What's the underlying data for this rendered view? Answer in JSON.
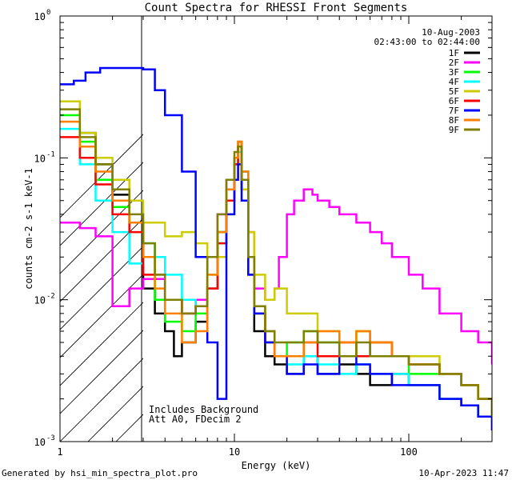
{
  "chart_data": {
    "type": "line",
    "title": "Count Spectra for RHESSI Front Segments",
    "xlabel": "Energy (keV)",
    "ylabel": "counts cm-2 s-1 keV-1",
    "xscale": "log",
    "yscale": "log",
    "xlim": [
      1,
      300
    ],
    "ylim": [
      0.001,
      1
    ],
    "x_ticks": [
      {
        "value": 1,
        "label": "1"
      },
      {
        "value": 10,
        "label": "10"
      },
      {
        "value": 100,
        "label": "100"
      }
    ],
    "y_ticks": [
      {
        "value": 1,
        "label": "10",
        "exp": "0"
      },
      {
        "value": 0.1,
        "label": "10",
        "exp": "-1"
      },
      {
        "value": 0.01,
        "label": "10",
        "exp": "-2"
      },
      {
        "value": 0.001,
        "label": "10",
        "exp": "-3"
      }
    ],
    "excluded_region": {
      "from": 1,
      "to": 3
    },
    "info": {
      "date": "10-Aug-2003",
      "time_range": "02:43:00 to 02:44:00",
      "background_note": "Includes Background",
      "attenuator_note": "Att A0, FDecim 2"
    },
    "footer_left": "Generated by hsi_min_spectra_plot.pro",
    "footer_right": "10-Apr-2023 11:47",
    "series": [
      {
        "name": "1F",
        "color": "#000000",
        "x": [
          1.3,
          1.6,
          2.0,
          2.5,
          3.0,
          3.5,
          4.0,
          4.5,
          5.0,
          6.0,
          7.0,
          8.0,
          9.0,
          10.0,
          10.5,
          11.0,
          12.0,
          13.0,
          15.0,
          17.0,
          20.0,
          25.0,
          30.0,
          40.0,
          50.0,
          60.0,
          80.0,
          100.0,
          150.0,
          200.0,
          250.0,
          300.0
        ],
        "y": [
          0.15,
          0.09,
          0.055,
          0.035,
          0.012,
          0.008,
          0.006,
          0.004,
          0.005,
          0.007,
          0.012,
          0.03,
          0.05,
          0.09,
          0.12,
          0.06,
          0.015,
          0.006,
          0.004,
          0.0035,
          0.003,
          0.004,
          0.003,
          0.0035,
          0.003,
          0.0025,
          0.003,
          0.0025,
          0.002,
          0.0018,
          0.0015,
          0.0012
        ]
      },
      {
        "name": "2F",
        "color": "#ff00ff",
        "x": [
          1.0,
          1.3,
          1.6,
          2.0,
          2.5,
          3.0,
          4.0,
          5.0,
          6.0,
          7.0,
          8.0,
          9.0,
          10.0,
          10.5,
          11.0,
          12.0,
          13.0,
          15.0,
          17.0,
          18.0,
          20.0,
          22.0,
          25.0,
          28.0,
          30.0,
          35.0,
          40.0,
          50.0,
          60.0,
          70.0,
          80.0,
          100.0,
          120.0,
          150.0,
          200.0,
          250.0,
          300.0
        ],
        "y": [
          0.035,
          0.032,
          0.028,
          0.009,
          0.012,
          0.014,
          0.01,
          0.008,
          0.01,
          0.02,
          0.04,
          0.07,
          0.1,
          0.12,
          0.08,
          0.03,
          0.012,
          0.01,
          0.012,
          0.02,
          0.04,
          0.05,
          0.06,
          0.055,
          0.05,
          0.045,
          0.04,
          0.035,
          0.03,
          0.025,
          0.02,
          0.015,
          0.012,
          0.008,
          0.006,
          0.005,
          0.0035
        ]
      },
      {
        "name": "3F",
        "color": "#00ff00",
        "x": [
          1.0,
          1.3,
          1.6,
          2.0,
          2.5,
          3.0,
          3.5,
          4.0,
          5.0,
          6.0,
          7.0,
          8.0,
          9.0,
          10.0,
          10.5,
          11.0,
          12.0,
          13.0,
          15.0,
          17.0,
          20.0,
          25.0,
          30.0,
          40.0,
          50.0,
          60.0,
          80.0,
          100.0,
          150.0,
          200.0,
          250.0,
          300.0
        ],
        "y": [
          0.2,
          0.13,
          0.07,
          0.045,
          0.035,
          0.025,
          0.01,
          0.007,
          0.006,
          0.008,
          0.015,
          0.03,
          0.06,
          0.1,
          0.13,
          0.08,
          0.02,
          0.008,
          0.005,
          0.004,
          0.005,
          0.006,
          0.005,
          0.004,
          0.006,
          0.005,
          0.004,
          0.003,
          0.003,
          0.0025,
          0.002,
          0.0015
        ]
      },
      {
        "name": "4F",
        "color": "#00ffff",
        "x": [
          1.0,
          1.3,
          1.6,
          2.0,
          2.5,
          3.0,
          3.5,
          4.0,
          5.0,
          6.0,
          7.0,
          8.0,
          9.0,
          10.0,
          10.5,
          11.0,
          12.0,
          13.0,
          15.0,
          17.0,
          20.0,
          25.0,
          30.0,
          40.0,
          50.0,
          60.0,
          80.0,
          100.0,
          150.0,
          200.0,
          250.0,
          300.0
        ],
        "y": [
          0.16,
          0.09,
          0.05,
          0.03,
          0.018,
          0.025,
          0.02,
          0.015,
          0.01,
          0.009,
          0.012,
          0.025,
          0.05,
          0.09,
          0.11,
          0.07,
          0.02,
          0.009,
          0.006,
          0.004,
          0.0035,
          0.004,
          0.0035,
          0.003,
          0.0035,
          0.003,
          0.003,
          0.0025,
          0.002,
          0.0018,
          0.0015,
          0.0012
        ]
      },
      {
        "name": "5F",
        "color": "#cccc00",
        "x": [
          1.0,
          1.3,
          1.6,
          2.0,
          2.5,
          3.0,
          4.0,
          5.0,
          6.0,
          7.0,
          8.0,
          9.0,
          10.0,
          10.5,
          11.0,
          12.0,
          13.0,
          15.0,
          17.0,
          20.0,
          25.0,
          30.0,
          40.0,
          50.0,
          60.0,
          80.0,
          100.0,
          150.0,
          200.0,
          250.0,
          300.0
        ],
        "y": [
          0.25,
          0.15,
          0.1,
          0.07,
          0.05,
          0.035,
          0.028,
          0.03,
          0.025,
          0.02,
          0.02,
          0.04,
          0.07,
          0.09,
          0.06,
          0.03,
          0.015,
          0.01,
          0.012,
          0.008,
          0.008,
          0.006,
          0.005,
          0.006,
          0.005,
          0.004,
          0.004,
          0.003,
          0.0025,
          0.002,
          0.0015
        ]
      },
      {
        "name": "6F",
        "color": "#ff0000",
        "x": [
          1.0,
          1.3,
          1.6,
          2.0,
          2.5,
          3.0,
          4.0,
          5.0,
          6.0,
          7.0,
          8.0,
          9.0,
          10.0,
          10.5,
          11.0,
          12.0,
          13.0,
          15.0,
          17.0,
          20.0,
          25.0,
          30.0,
          40.0,
          50.0,
          60.0,
          80.0,
          100.0,
          150.0,
          200.0,
          250.0,
          300.0
        ],
        "y": [
          0.14,
          0.1,
          0.065,
          0.04,
          0.03,
          0.015,
          0.01,
          0.008,
          0.009,
          0.012,
          0.025,
          0.05,
          0.09,
          0.13,
          0.07,
          0.02,
          0.008,
          0.005,
          0.004,
          0.004,
          0.005,
          0.004,
          0.005,
          0.004,
          0.005,
          0.004,
          0.0035,
          0.003,
          0.0025,
          0.002,
          0.0015
        ]
      },
      {
        "name": "7F",
        "color": "#0000ff",
        "x": [
          1.0,
          1.2,
          1.4,
          1.7,
          2.0,
          2.5,
          3.0,
          3.5,
          4.0,
          5.0,
          6.0,
          7.0,
          8.0,
          9.0,
          10.0,
          10.5,
          11.0,
          12.0,
          13.0,
          15.0,
          17.0,
          20.0,
          25.0,
          30.0,
          40.0,
          50.0,
          60.0,
          80.0,
          100.0,
          150.0,
          200.0,
          250.0,
          300.0
        ],
        "y": [
          0.33,
          0.35,
          0.4,
          0.43,
          0.43,
          0.43,
          0.42,
          0.3,
          0.2,
          0.08,
          0.02,
          0.005,
          0.002,
          0.04,
          0.07,
          0.09,
          0.05,
          0.015,
          0.008,
          0.005,
          0.004,
          0.003,
          0.0035,
          0.003,
          0.004,
          0.0035,
          0.003,
          0.0025,
          0.0025,
          0.002,
          0.0018,
          0.0015,
          0.0012
        ]
      },
      {
        "name": "8F",
        "color": "#ff8000",
        "x": [
          1.0,
          1.3,
          1.6,
          2.0,
          2.5,
          3.0,
          3.5,
          4.0,
          5.0,
          6.0,
          7.0,
          8.0,
          9.0,
          10.0,
          10.5,
          11.0,
          12.0,
          13.0,
          15.0,
          17.0,
          20.0,
          25.0,
          30.0,
          40.0,
          50.0,
          60.0,
          80.0,
          100.0,
          150.0,
          200.0,
          250.0,
          300.0
        ],
        "y": [
          0.18,
          0.12,
          0.08,
          0.05,
          0.035,
          0.02,
          0.012,
          0.008,
          0.005,
          0.006,
          0.015,
          0.03,
          0.06,
          0.1,
          0.13,
          0.08,
          0.02,
          0.009,
          0.006,
          0.004,
          0.004,
          0.005,
          0.006,
          0.005,
          0.006,
          0.005,
          0.004,
          0.0035,
          0.003,
          0.0025,
          0.002,
          0.0018
        ]
      },
      {
        "name": "9F",
        "color": "#808000",
        "x": [
          1.0,
          1.3,
          1.6,
          2.0,
          2.5,
          3.0,
          3.5,
          4.0,
          5.0,
          6.0,
          7.0,
          8.0,
          9.0,
          10.0,
          10.5,
          11.0,
          12.0,
          13.0,
          15.0,
          17.0,
          20.0,
          25.0,
          30.0,
          40.0,
          50.0,
          60.0,
          80.0,
          100.0,
          150.0,
          200.0,
          250.0,
          300.0
        ],
        "y": [
          0.22,
          0.14,
          0.09,
          0.06,
          0.04,
          0.025,
          0.015,
          0.01,
          0.008,
          0.009,
          0.02,
          0.04,
          0.07,
          0.11,
          0.12,
          0.07,
          0.02,
          0.009,
          0.006,
          0.005,
          0.005,
          0.006,
          0.005,
          0.004,
          0.005,
          0.004,
          0.004,
          0.0035,
          0.003,
          0.0025,
          0.002,
          0.0015
        ]
      }
    ]
  }
}
